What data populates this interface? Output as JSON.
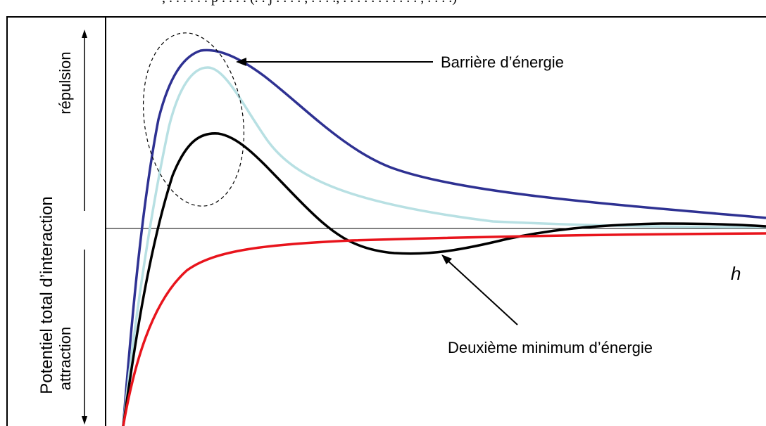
{
  "caption_fragment": ", . . . . . . p . . . . (. . j . . . . , . . . ., . . . . . . . . . . . , . . . .)",
  "y_axis": {
    "label": "Potentiel total d’interaction",
    "upper": "répulsion",
    "lower": "attraction"
  },
  "x_axis": {
    "label": "h"
  },
  "annotations": {
    "barrier": "Barrière d’énergie",
    "second_minimum": "Deuxième minimum d’énergie"
  },
  "colors": {
    "curve_dark_blue": "#2e3192",
    "curve_light_blue": "#b8e0e3",
    "curve_black": "#000000",
    "curve_red": "#e8141c",
    "frame": "#000000"
  }
}
